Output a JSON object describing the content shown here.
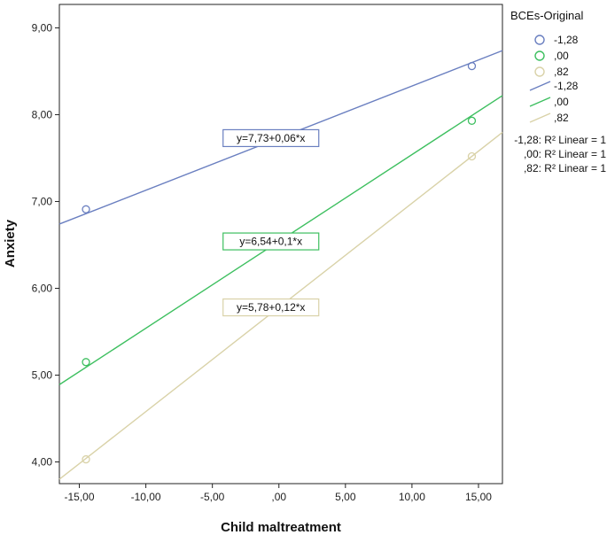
{
  "chart_data": {
    "type": "scatter",
    "xlabel": "Child maltreatment",
    "ylabel": "Anxiety",
    "xlim": [
      -16.5,
      16.8
    ],
    "ylim": [
      3.75,
      9.27
    ],
    "x_ticks": [
      -15,
      -10,
      -5,
      0,
      5,
      10,
      15
    ],
    "x_tick_labels": [
      "-15,00",
      "-10,00",
      "-5,00",
      ",00",
      "5,00",
      "10,00",
      "15,00"
    ],
    "y_ticks": [
      4,
      5,
      6,
      7,
      8,
      9
    ],
    "y_tick_labels": [
      "4,00",
      "5,00",
      "6,00",
      "7,00",
      "8,00",
      "9,00"
    ],
    "legend_title": "BCEs-Original",
    "legend_position": "right",
    "series": [
      {
        "name": "-1,28",
        "color": "#6a7fc0",
        "intercept": 7.73,
        "slope": 0.06,
        "points": [
          {
            "x": -14.5,
            "y": 6.91
          },
          {
            "x": 14.5,
            "y": 8.56
          }
        ],
        "equation": "y=7,73+0,06*x",
        "r2_label": "-1,28: R² Linear = 1"
      },
      {
        "name": ",00",
        "color": "#3dbf5f",
        "intercept": 6.54,
        "slope": 0.1,
        "points": [
          {
            "x": -14.5,
            "y": 5.15
          },
          {
            "x": 14.5,
            "y": 7.93
          }
        ],
        "equation": "y=6,54+0,1*x",
        "r2_label": ",00: R² Linear = 1"
      },
      {
        "name": ",82",
        "color": "#d9d2a8",
        "intercept": 5.78,
        "slope": 0.12,
        "points": [
          {
            "x": -14.5,
            "y": 4.03
          },
          {
            "x": 14.5,
            "y": 7.52
          }
        ],
        "equation": "y=5,78+0,12*x",
        "r2_label": ",82: R² Linear = 1"
      }
    ]
  }
}
